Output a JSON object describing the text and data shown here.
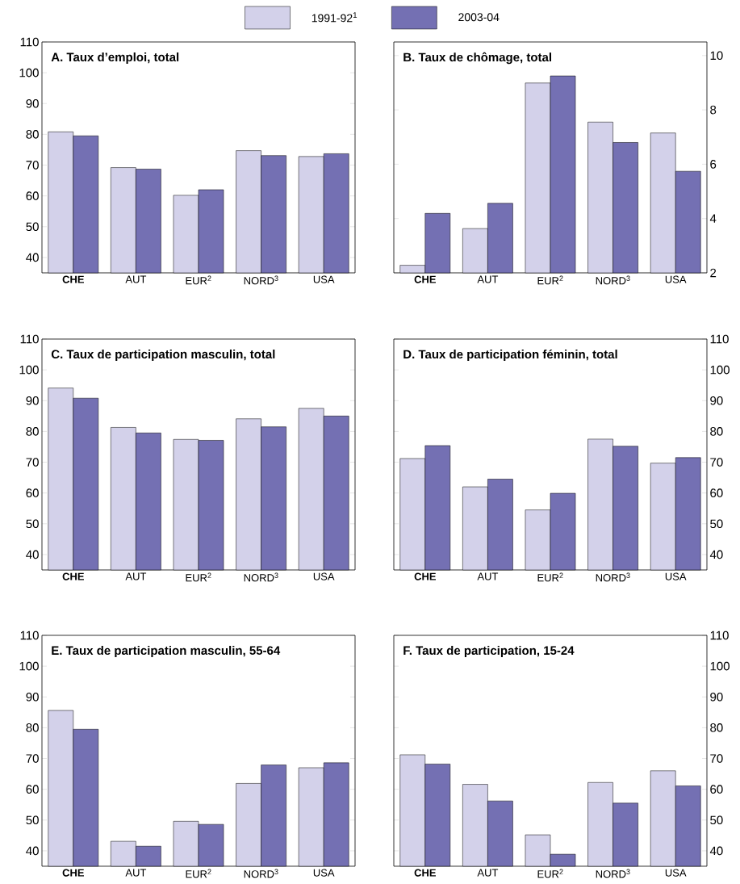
{
  "chart_data": [
    {
      "type": "bar",
      "title": "A. Taux d’emploi, total",
      "categories": [
        "**CHE**",
        "AUT",
        "EUR$^{2}$",
        "NORD$^{3}$",
        "USA"
      ],
      "ylim": [
        35,
        110
      ],
      "yticks": [
        40,
        50,
        60,
        70,
        80,
        90,
        100,
        110
      ],
      "legend": "top",
      "series": [
        {
          "name": "1991-92$^{1}$",
          "color": "#d3d1ea",
          "values": [
            80.8,
            69.2,
            60.2,
            74.7,
            72.8
          ]
        },
        {
          "name": "2003-04",
          "color": "#7470b3",
          "values": [
            79.5,
            68.7,
            62.0,
            73.1,
            73.7
          ]
        }
      ]
    },
    {
      "type": "bar",
      "title": "B. Taux de chômage, total",
      "categories": [
        "**CHE**",
        "AUT",
        "EUR$^{2}$",
        "NORD$^{3}$",
        "USA"
      ],
      "y2lim": [
        2,
        10.5
      ],
      "y2ticks": [
        2,
        4,
        6,
        8,
        10
      ],
      "series": [
        {
          "color": "#d3d1ea",
          "axis": "y2",
          "values": [
            2.28,
            3.63,
            8.99,
            7.55,
            7.15
          ]
        },
        {
          "color": "#7470b3",
          "axis": "y2",
          "values": [
            4.19,
            4.56,
            9.25,
            6.8,
            5.74
          ]
        }
      ]
    },
    {
      "type": "bar",
      "title": "C. Taux de participation masculin, total",
      "categories": [
        "**CHE**",
        "AUT",
        "EUR$^{2}$",
        "NORD$^{3}$",
        "USA"
      ],
      "ylim": [
        35,
        110
      ],
      "yticks": [
        40,
        50,
        60,
        70,
        80,
        90,
        100,
        110
      ],
      "series": [
        {
          "color": "#d3d1ea",
          "values": [
            94.1,
            81.3,
            77.4,
            84.1,
            87.5
          ]
        },
        {
          "color": "#7470b3",
          "values": [
            90.8,
            79.5,
            77.1,
            81.5,
            85.0
          ]
        }
      ]
    },
    {
      "type": "bar",
      "title": "D. Taux de participation féminin, total",
      "categories": [
        "**CHE**",
        "AUT",
        "EUR$^{2}$",
        "NORD$^{3}$",
        "USA"
      ],
      "y2lim": [
        35,
        110
      ],
      "y2ticks": [
        40,
        50,
        60,
        70,
        80,
        90,
        100,
        110
      ],
      "series": [
        {
          "color": "#d3d1ea",
          "axis": "y2",
          "values": [
            71.2,
            62.0,
            54.5,
            77.5,
            69.7
          ]
        },
        {
          "color": "#7470b3",
          "axis": "y2",
          "values": [
            75.4,
            64.5,
            59.9,
            75.2,
            71.5
          ]
        }
      ]
    },
    {
      "type": "bar",
      "title": "E. Taux de participation masculin, 55-64",
      "categories": [
        "**CHE**",
        "AUT",
        "EUR$^{2}$",
        "NORD$^{3}$",
        "USA"
      ],
      "ylim": [
        35,
        110
      ],
      "yticks": [
        40,
        50,
        60,
        70,
        80,
        90,
        100,
        110
      ],
      "series": [
        {
          "color": "#d3d1ea",
          "values": [
            85.6,
            43.1,
            49.6,
            61.9,
            67.0
          ]
        },
        {
          "color": "#7470b3",
          "values": [
            79.5,
            41.5,
            48.6,
            67.9,
            68.6
          ]
        }
      ]
    },
    {
      "type": "bar",
      "title": "F. Taux de participation, 15-24",
      "categories": [
        "**CHE**",
        "AUT",
        "EUR$^{2}$",
        "NORD$^{3}$",
        "USA"
      ],
      "y2lim": [
        35,
        110
      ],
      "y2ticks": [
        40,
        50,
        60,
        70,
        80,
        90,
        100,
        110
      ],
      "series": [
        {
          "color": "#d3d1ea",
          "axis": "y2",
          "values": [
            71.2,
            61.6,
            45.2,
            62.2,
            66.0
          ]
        },
        {
          "color": "#7470b3",
          "axis": "y2",
          "values": [
            68.2,
            56.2,
            38.9,
            55.5,
            61.1
          ]
        }
      ]
    }
  ]
}
